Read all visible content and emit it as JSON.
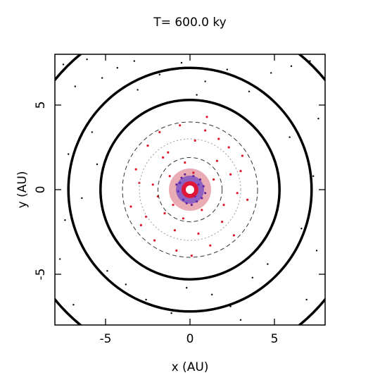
{
  "chart_data": {
    "type": "scatter",
    "title": "T=  600.0 ky",
    "xlabel": "x (AU)",
    "ylabel": "y (AU)",
    "xlim": [
      -8,
      8
    ],
    "ylim": [
      -8,
      8
    ],
    "xticks": [
      -5,
      0,
      5
    ],
    "yticks": [
      -5,
      0,
      5
    ],
    "series": [
      {
        "color": "#000000",
        "x": [
          -7.5,
          -6.8,
          -6.1,
          -5.2,
          -4.3,
          -3.1,
          -1.8,
          -0.5,
          0.9,
          2.2,
          3.5,
          4.8,
          6.0,
          7.1,
          7.6,
          -7.2,
          -6.4,
          7.3,
          6.6,
          -7.7,
          -5.8,
          5.9,
          -3.8,
          3.7,
          -2.6,
          2.4,
          -1.1,
          1.3,
          -4.9,
          4.6,
          -6.9,
          6.9,
          -7.4,
          7.5,
          -5.5,
          5.2,
          -0.2,
          0.4,
          -3.3,
          3.0
        ],
        "y": [
          7.4,
          6.1,
          7.7,
          6.6,
          7.2,
          5.9,
          6.8,
          7.5,
          6.4,
          7.1,
          5.8,
          6.9,
          7.3,
          7.6,
          4.2,
          2.1,
          -0.5,
          0.8,
          -2.3,
          -4.1,
          3.4,
          3.1,
          -5.6,
          -5.2,
          -6.5,
          -6.9,
          -7.3,
          -6.2,
          -4.8,
          -4.4,
          -6.8,
          -6.5,
          -1.8,
          -3.6,
          1.5,
          -1.2,
          -5.8,
          5.6,
          7.6,
          -7.7
        ]
      },
      {
        "color": "#e0142a",
        "x": [
          -3.2,
          -2.5,
          -1.8,
          -1.2,
          -0.6,
          0.3,
          0.9,
          1.6,
          2.3,
          3.0,
          3.4,
          -3.5,
          -2.9,
          -2.1,
          -1.5,
          -0.8,
          0.5,
          1.2,
          1.9,
          2.6,
          -0.3,
          0.7,
          -1.0,
          1.4,
          -2.2,
          2.8,
          -1.6,
          0.1,
          3.1,
          -3.0,
          1.0,
          -0.4,
          2.0,
          -2.6,
          0.2,
          -1.3,
          1.7,
          -0.9,
          2.4,
          -1.9
        ],
        "y": [
          1.2,
          2.6,
          3.4,
          0.8,
          3.8,
          2.9,
          3.5,
          1.7,
          2.5,
          1.1,
          -0.6,
          -1.0,
          -2.1,
          -3.0,
          -1.4,
          -3.6,
          -2.6,
          -3.3,
          -1.9,
          -2.7,
          1.6,
          -1.2,
          -0.9,
          0.6,
          0.3,
          -0.2,
          1.9,
          -3.9,
          2.0,
          0.4,
          4.3,
          -1.7,
          -0.9,
          -1.6,
          1.0,
          2.2,
          3.0,
          -2.4,
          0.9,
          -0.4
        ]
      },
      {
        "color": "#3a2bd0",
        "x": [
          0.5,
          -0.6,
          0.7,
          -0.4,
          0.2,
          -0.7,
          0.8,
          -0.2,
          0.4,
          -0.5,
          0.6,
          -0.8,
          0.1,
          -0.3,
          0.3,
          0.9
        ],
        "y": [
          0.3,
          0.4,
          -0.5,
          -0.6,
          0.8,
          -0.1,
          0.2,
          -0.8,
          -0.7,
          0.7,
          0.6,
          0.3,
          -0.9,
          0.9,
          -0.4,
          -0.2
        ]
      }
    ],
    "circles": [
      {
        "radius": 5.3,
        "style": "solid"
      },
      {
        "radius": 7.2,
        "style": "solid"
      },
      {
        "radius": 10.3,
        "style": "solid"
      },
      {
        "radius": 4.0,
        "style": "dashed"
      },
      {
        "radius": 3.0,
        "style": "dotted"
      },
      {
        "radius": 1.9,
        "style": "dashed"
      }
    ]
  }
}
